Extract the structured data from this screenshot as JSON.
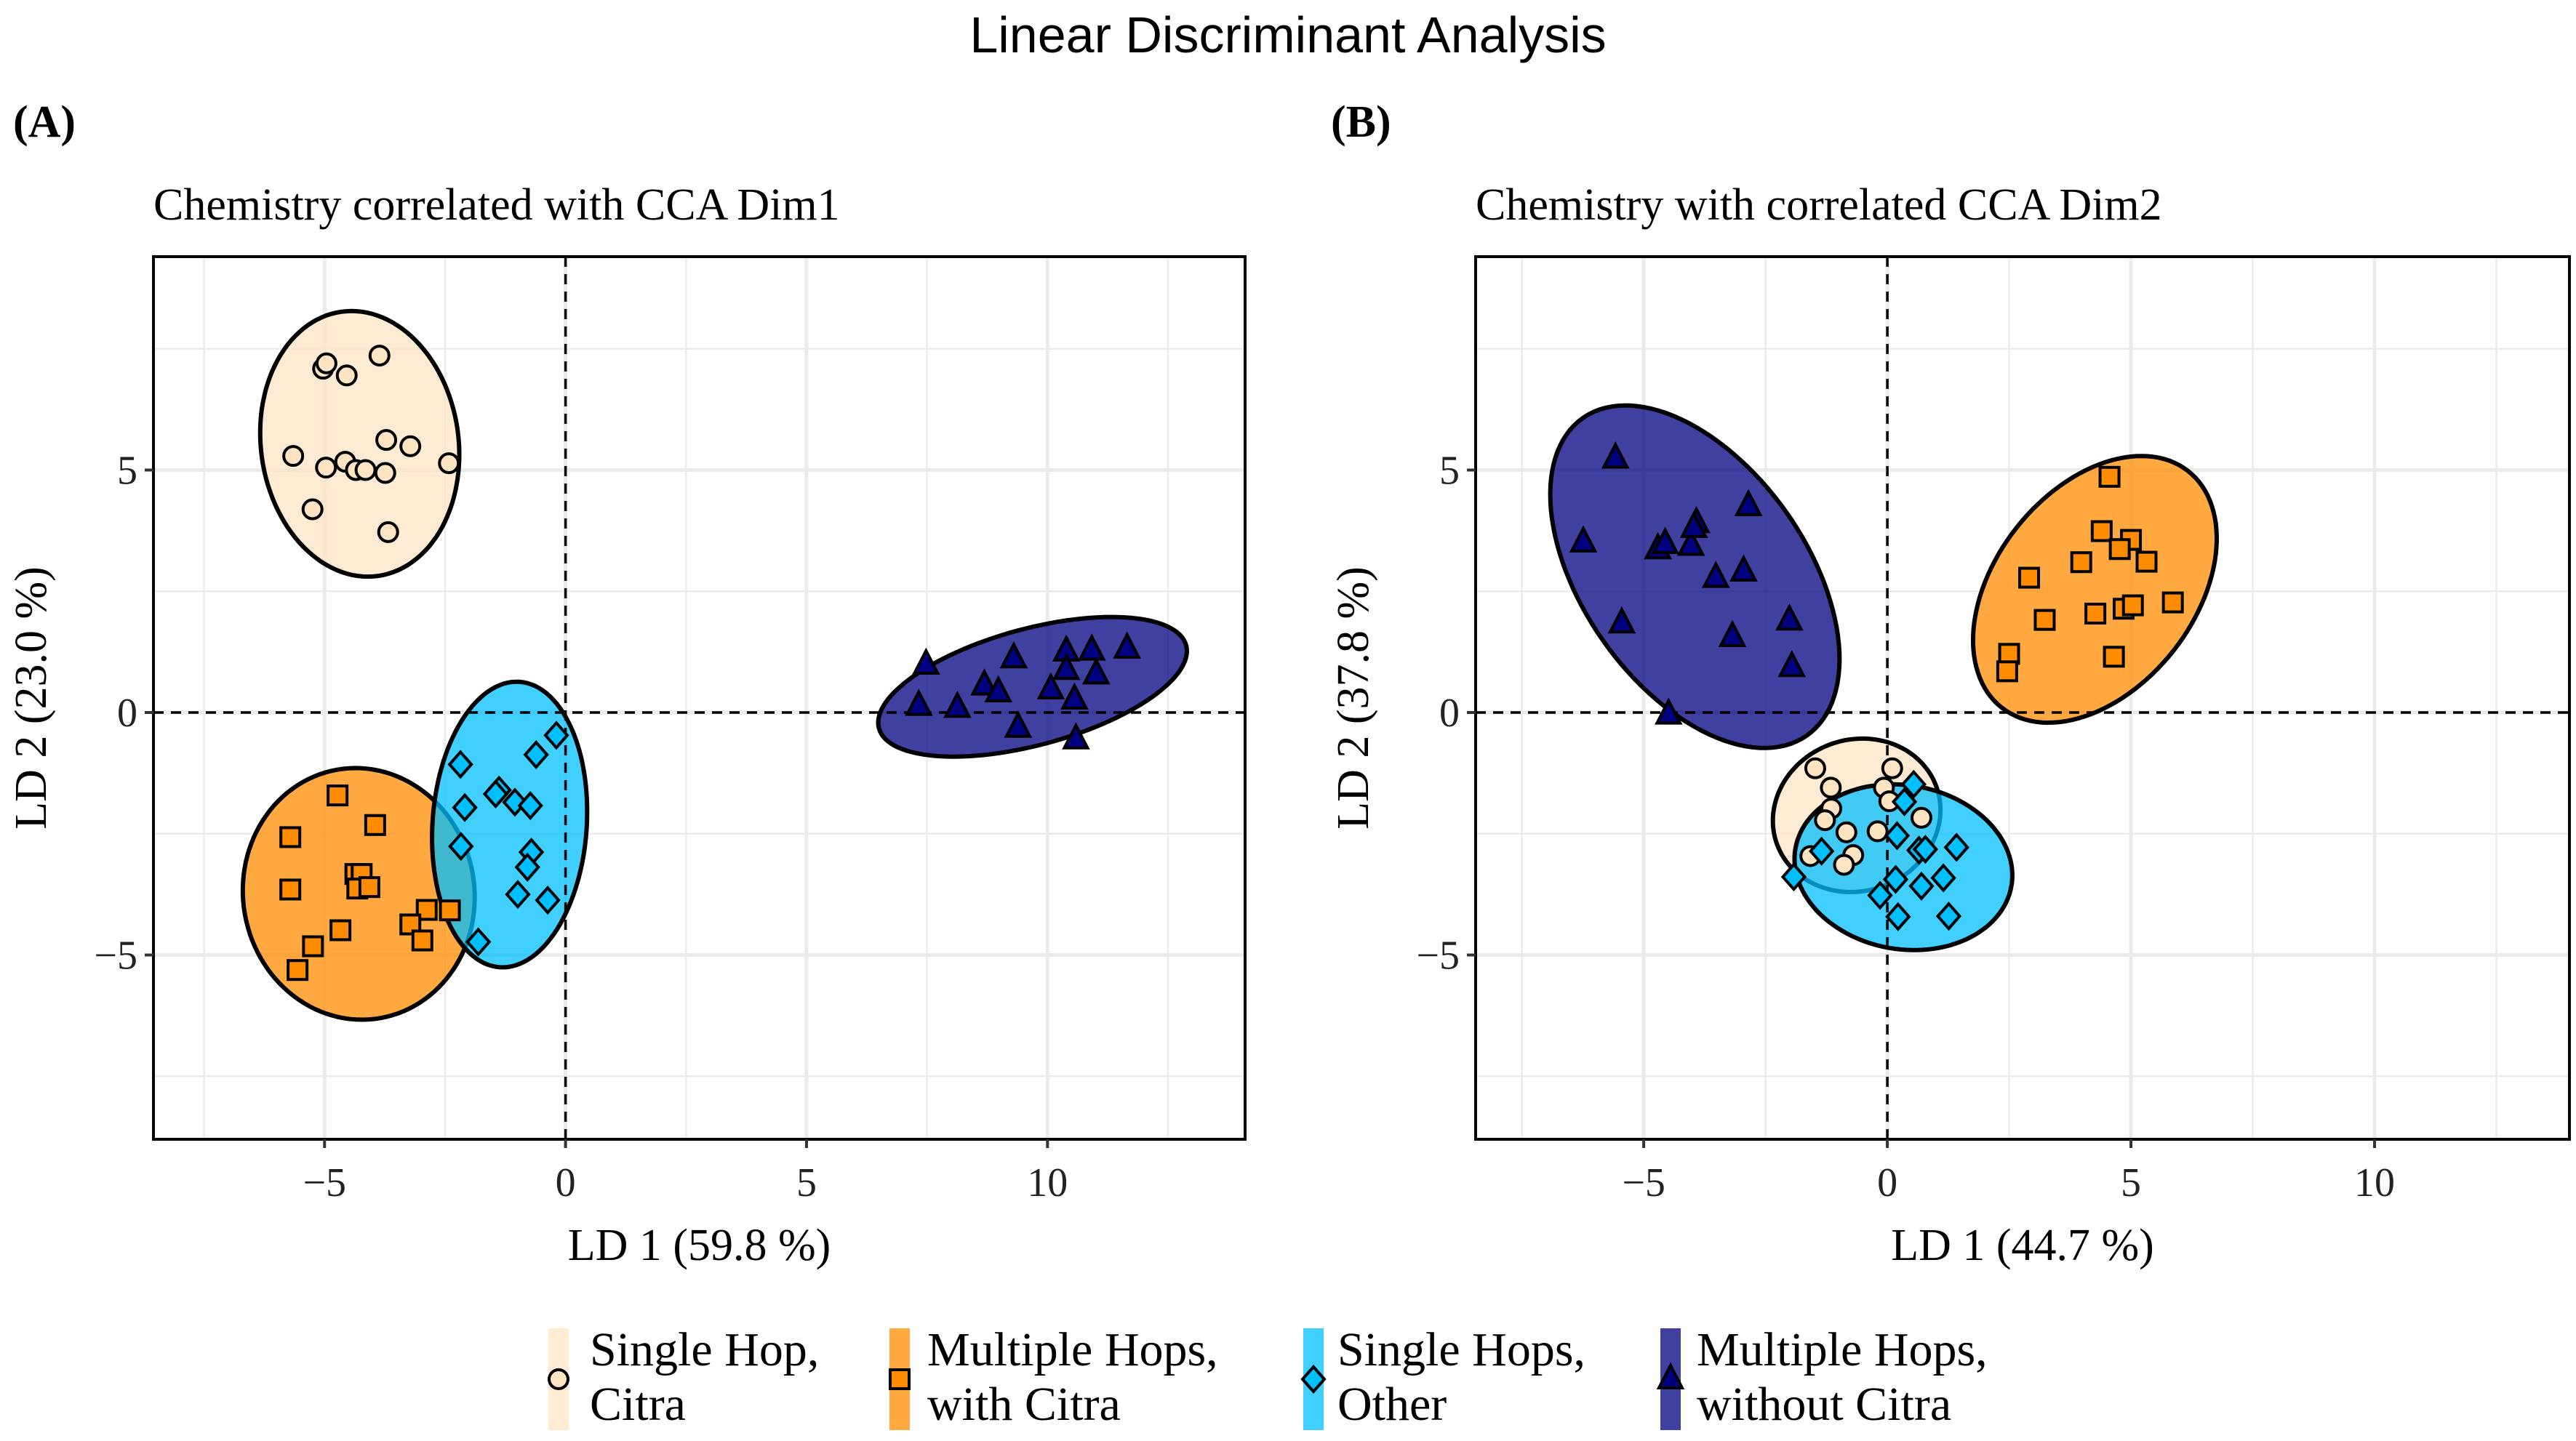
{
  "title": "Linear Discriminant Analysis",
  "colors": {
    "single_hop_citra": "#FFE4C4",
    "multiple_hops_with_citra": "#FF8C00",
    "single_hops_other": "#00BFFF",
    "multiple_hops_without_citra": "#000080"
  },
  "legend": {
    "placement": "bottom",
    "items": [
      {
        "key": "single_hop_citra",
        "line1": "Single Hop,",
        "line2": "Citra",
        "shape": "circle"
      },
      {
        "key": "multiple_hops_with_citra",
        "line1": "Multiple Hops,",
        "line2": "with Citra",
        "shape": "square"
      },
      {
        "key": "single_hops_other",
        "line1": "Single Hops,",
        "line2": "Other",
        "shape": "diamond"
      },
      {
        "key": "multiple_hops_without_citra",
        "line1": "Multiple Hops,",
        "line2": "without Citra",
        "shape": "triangle"
      }
    ]
  },
  "chart_data": [
    {
      "type": "scatter",
      "panel_label": "(A)",
      "title": "Chemistry correlated with CCA Dim1",
      "xlabel": "LD 1 (59.8 %)",
      "ylabel": "LD 2 (23.0 %)",
      "xlim": [
        -8.55,
        14.1
      ],
      "ylim": [
        -8.8,
        9.4
      ],
      "xticks": [
        -5,
        0,
        5,
        10
      ],
      "xtick_labels": [
        "−5",
        "0",
        "5",
        "10"
      ],
      "yticks": [
        -5,
        0,
        5
      ],
      "ytick_labels": [
        "−5",
        "0",
        "5"
      ],
      "grid": true,
      "series": [
        {
          "key": "single_hop_citra",
          "ellipse": {
            "cx": -4.27,
            "cy": 5.54,
            "a": 2.75,
            "b": 2.05,
            "angle": 98
          },
          "points": [
            [
              -5.03,
              7.09
            ],
            [
              -4.96,
              7.2
            ],
            [
              -4.54,
              6.95
            ],
            [
              -3.86,
              7.36
            ],
            [
              -5.65,
              5.29
            ],
            [
              -4.97,
              5.05
            ],
            [
              -4.57,
              5.17
            ],
            [
              -4.35,
              5.0
            ],
            [
              -4.15,
              5.0
            ],
            [
              -3.74,
              4.94
            ],
            [
              -3.72,
              5.62
            ],
            [
              -3.22,
              5.49
            ],
            [
              -2.42,
              5.14
            ],
            [
              -5.25,
              4.19
            ],
            [
              -3.68,
              3.72
            ]
          ]
        },
        {
          "key": "multiple_hops_with_citra",
          "ellipse": {
            "cx": -4.29,
            "cy": -3.74,
            "a": 2.6,
            "b": 2.4,
            "angle": 100
          },
          "points": [
            [
              -4.73,
              -1.71
            ],
            [
              -3.95,
              -2.32
            ],
            [
              -5.71,
              -2.57
            ],
            [
              -5.71,
              -3.65
            ],
            [
              -4.36,
              -3.33
            ],
            [
              -4.23,
              -3.33
            ],
            [
              -4.32,
              -3.63
            ],
            [
              -4.07,
              -3.6
            ],
            [
              -2.88,
              -4.07
            ],
            [
              -2.4,
              -4.08
            ],
            [
              -3.22,
              -4.37
            ],
            [
              -2.97,
              -4.7
            ],
            [
              -4.67,
              -4.49
            ],
            [
              -5.24,
              -4.82
            ],
            [
              -5.56,
              -5.31
            ]
          ]
        },
        {
          "key": "single_hops_other",
          "ellipse": {
            "cx": -1.16,
            "cy": -2.31,
            "a": 2.95,
            "b": 1.6,
            "angle": 86
          },
          "points": [
            [
              -2.18,
              -1.07
            ],
            [
              -0.61,
              -0.87
            ],
            [
              -0.19,
              -0.47
            ],
            [
              -2.09,
              -1.96
            ],
            [
              -1.38,
              -1.6
            ],
            [
              -1.45,
              -1.68
            ],
            [
              -1.05,
              -1.85
            ],
            [
              -0.73,
              -1.92
            ],
            [
              -2.17,
              -2.76
            ],
            [
              -0.71,
              -2.88
            ],
            [
              -0.79,
              -3.19
            ],
            [
              -0.99,
              -3.75
            ],
            [
              -0.37,
              -3.87
            ],
            [
              -1.81,
              -4.73
            ]
          ]
        },
        {
          "key": "multiple_hops_without_citra",
          "ellipse": {
            "cx": 9.69,
            "cy": 0.53,
            "a": 3.3,
            "b": 1.2,
            "angle": 15
          },
          "points": [
            [
              7.48,
              0.99
            ],
            [
              7.33,
              0.14
            ],
            [
              8.13,
              0.1
            ],
            [
              8.69,
              0.56
            ],
            [
              8.98,
              0.42
            ],
            [
              9.3,
              1.12
            ],
            [
              9.39,
              -0.31
            ],
            [
              10.07,
              0.48
            ],
            [
              10.39,
              1.26
            ],
            [
              10.39,
              0.88
            ],
            [
              10.56,
              0.27
            ],
            [
              10.92,
              1.28
            ],
            [
              11.01,
              0.79
            ],
            [
              11.65,
              1.32
            ],
            [
              10.59,
              -0.55
            ]
          ]
        }
      ]
    },
    {
      "type": "scatter",
      "panel_label": "(B)",
      "title": "Chemistry with correlated CCA Dim2",
      "xlabel": "LD 1 (44.7 %)",
      "ylabel": "LD 2 (37.8 %)",
      "xlim": [
        -8.45,
        14.0
      ],
      "ylim": [
        -8.8,
        9.4
      ],
      "xticks": [
        -5,
        0,
        5,
        10
      ],
      "xtick_labels": [
        "−5",
        "0",
        "5",
        "10"
      ],
      "yticks": [
        -5,
        0,
        5
      ],
      "ytick_labels": [
        "−5",
        "0",
        "5"
      ],
      "grid": true,
      "series": [
        {
          "key": "multiple_hops_without_citra",
          "ellipse": {
            "cx": -3.95,
            "cy": 2.8,
            "a": 4.0,
            "b": 2.3,
            "angle": 125
          },
          "points": [
            [
              -5.58,
              5.24
            ],
            [
              -6.24,
              3.51
            ],
            [
              -4.71,
              3.37
            ],
            [
              -4.56,
              3.48
            ],
            [
              -4.03,
              3.44
            ],
            [
              -3.92,
              3.91
            ],
            [
              -3.97,
              3.81
            ],
            [
              -2.85,
              4.26
            ],
            [
              -3.52,
              2.78
            ],
            [
              -2.95,
              2.91
            ],
            [
              -5.45,
              1.84
            ],
            [
              -3.18,
              1.56
            ],
            [
              -2.01,
              1.9
            ],
            [
              -1.96,
              0.94
            ],
            [
              -4.49,
              -0.04
            ]
          ]
        },
        {
          "key": "multiple_hops_with_citra",
          "ellipse": {
            "cx": 4.26,
            "cy": 2.54,
            "a": 3.1,
            "b": 2.05,
            "angle": 52
          },
          "points": [
            [
              4.56,
              4.86
            ],
            [
              4.4,
              3.74
            ],
            [
              5.0,
              3.56
            ],
            [
              4.77,
              3.37
            ],
            [
              5.32,
              3.11
            ],
            [
              3.98,
              3.1
            ],
            [
              2.91,
              2.78
            ],
            [
              3.23,
              1.91
            ],
            [
              4.27,
              2.04
            ],
            [
              4.85,
              2.14
            ],
            [
              5.04,
              2.21
            ],
            [
              5.86,
              2.27
            ],
            [
              4.65,
              1.15
            ],
            [
              2.5,
              1.21
            ],
            [
              2.46,
              0.85
            ]
          ]
        },
        {
          "key": "single_hop_citra",
          "ellipse": {
            "cx": -0.63,
            "cy": -2.12,
            "a": 1.74,
            "b": 1.56,
            "angle": 20
          },
          "points": [
            [
              -1.48,
              -1.15
            ],
            [
              0.1,
              -1.15
            ],
            [
              -1.16,
              -1.55
            ],
            [
              -0.07,
              -1.55
            ],
            [
              0.04,
              -1.83
            ],
            [
              -1.15,
              -1.98
            ],
            [
              -1.28,
              -2.22
            ],
            [
              0.7,
              -2.17
            ],
            [
              -0.84,
              -2.47
            ],
            [
              -0.2,
              -2.45
            ],
            [
              -1.58,
              -2.96
            ],
            [
              -0.7,
              -2.94
            ],
            [
              -0.89,
              -3.14
            ]
          ]
        },
        {
          "key": "single_hops_other",
          "ellipse": {
            "cx": 0.33,
            "cy": -3.19,
            "a": 2.25,
            "b": 1.69,
            "angle": -10
          },
          "points": [
            [
              0.54,
              -1.48
            ],
            [
              0.35,
              -1.84
            ],
            [
              0.2,
              -2.54
            ],
            [
              0.65,
              -2.84
            ],
            [
              0.78,
              -2.82
            ],
            [
              1.42,
              -2.78
            ],
            [
              -1.35,
              -2.86
            ],
            [
              -1.92,
              -3.39
            ],
            [
              0.17,
              -3.44
            ],
            [
              1.15,
              -3.41
            ],
            [
              0.7,
              -3.58
            ],
            [
              -0.15,
              -3.77
            ],
            [
              0.22,
              -4.21
            ],
            [
              1.26,
              -4.2
            ]
          ]
        }
      ]
    }
  ]
}
